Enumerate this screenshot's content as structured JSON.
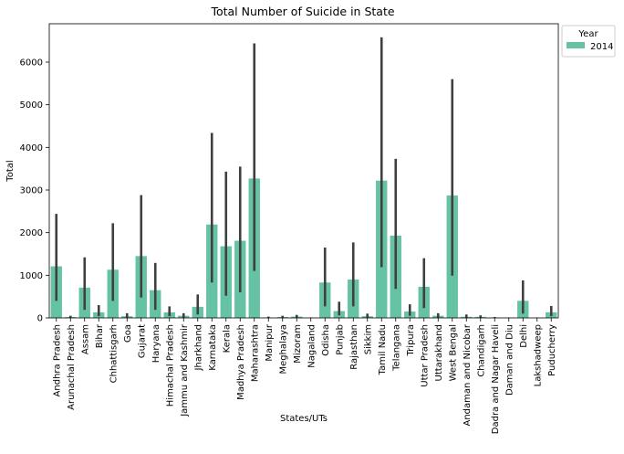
{
  "chart_data": {
    "type": "bar",
    "title": "Total Number of Suicide in State",
    "xlabel": "States/UTs",
    "ylabel": "Total",
    "ylim": [
      0,
      6900
    ],
    "yticks": [
      0,
      1000,
      2000,
      3000,
      4000,
      5000,
      6000
    ],
    "grid": false,
    "legend": {
      "title": "Year",
      "placement": "top-right, outside plot"
    },
    "categories": [
      "Andhra Pradesh",
      "Arunachal Pradesh",
      "Assam",
      "Bihar",
      "Chhattisgarh",
      "Goa",
      "Gujarat",
      "Haryana",
      "Himachal Pradesh",
      "Jammu and Kashmir",
      "Jharkhand",
      "Karnataka",
      "Kerala",
      "Madhya Pradesh",
      "Maharashtra",
      "Manipur",
      "Meghalaya",
      "Mizoram",
      "Nagaland",
      "Odisha",
      "Punjab",
      "Rajasthan",
      "Sikkim",
      "Tamil Nadu",
      "Telangana",
      "Tripura",
      "Uttar Pradesh",
      "Uttarakhand",
      "West Bengal",
      "Andaman and Nicobar",
      "Chandigarh",
      "Dadra and Nagar Haveli",
      "Daman and Diu",
      "Delhi",
      "Lakshadweep",
      "Puducherry"
    ],
    "series": [
      {
        "name": "2014",
        "color": "#66c2a5",
        "values": [
          1210,
          20,
          710,
          130,
          1130,
          40,
          1450,
          650,
          130,
          50,
          260,
          2190,
          1680,
          1810,
          3270,
          5,
          20,
          30,
          5,
          830,
          160,
          900,
          40,
          3220,
          1930,
          150,
          730,
          50,
          2870,
          25,
          25,
          10,
          5,
          400,
          2,
          130
        ],
        "error_low": [
          400,
          5,
          190,
          40,
          400,
          8,
          480,
          190,
          40,
          10,
          80,
          830,
          520,
          600,
          1100,
          0,
          5,
          5,
          0,
          270,
          60,
          270,
          10,
          1190,
          680,
          50,
          230,
          10,
          990,
          5,
          5,
          0,
          0,
          100,
          0,
          40
        ],
        "error_high": [
          2440,
          50,
          1420,
          300,
          2220,
          110,
          2880,
          1290,
          270,
          110,
          550,
          4340,
          3430,
          3550,
          6440,
          30,
          50,
          70,
          10,
          1650,
          380,
          1770,
          100,
          6580,
          3730,
          320,
          1400,
          110,
          5600,
          80,
          60,
          20,
          10,
          880,
          5,
          280
        ]
      }
    ],
    "error_bar_color": "#3f3f3f"
  }
}
